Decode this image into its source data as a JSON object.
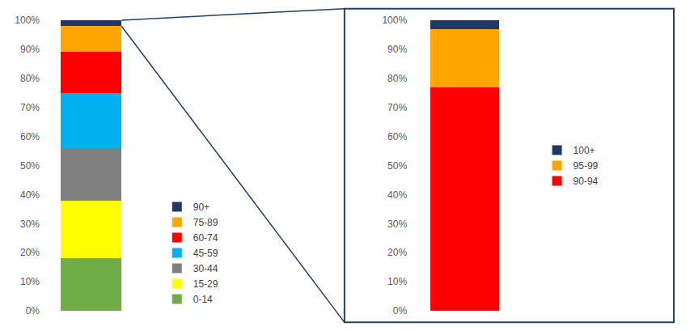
{
  "chart_data": [
    {
      "type": "bar",
      "stacked": true,
      "categories": [
        null
      ],
      "series": [
        {
          "name": "0-14",
          "color": "#70AD47",
          "values": [
            0.18
          ]
        },
        {
          "name": "15-29",
          "color": "#FFFF00",
          "values": [
            0.2
          ]
        },
        {
          "name": "30-44",
          "color": "#808080",
          "values": [
            0.18
          ]
        },
        {
          "name": "45-59",
          "color": "#00B0F0",
          "values": [
            0.19
          ]
        },
        {
          "name": "60-74",
          "color": "#FF0000",
          "values": [
            0.14
          ]
        },
        {
          "name": "75-89",
          "color": "#FFA500",
          "values": [
            0.09
          ]
        },
        {
          "name": "90+",
          "color": "#1F3864",
          "values": [
            0.02
          ]
        }
      ],
      "ylim": [
        0.0,
        1.0
      ],
      "yticks": [
        {
          "value": 0.0,
          "label": "0%"
        },
        {
          "value": 0.1,
          "label": "10%"
        },
        {
          "value": 0.2,
          "label": "20%"
        },
        {
          "value": 0.3,
          "label": "30%"
        },
        {
          "value": 0.4,
          "label": "40%"
        },
        {
          "value": 0.5,
          "label": "50%"
        },
        {
          "value": 0.6,
          "label": "60%"
        },
        {
          "value": 0.7,
          "label": "70%"
        },
        {
          "value": 0.8,
          "label": "80%"
        },
        {
          "value": 0.9,
          "label": "90%"
        },
        {
          "value": 1.0,
          "label": "100%"
        }
      ],
      "grid": false,
      "legend": "lower right",
      "tick_labels": "y"
    },
    {
      "type": "bar",
      "stacked": true,
      "categories": [
        null
      ],
      "series": [
        {
          "name": "90-94",
          "color": "#FF0000",
          "values": [
            0.77
          ]
        },
        {
          "name": "95-99",
          "color": "#FFA500",
          "values": [
            0.2
          ]
        },
        {
          "name": "100+",
          "color": "#1F3864",
          "values": [
            0.03
          ]
        }
      ],
      "ylim": [
        0.0,
        1.0
      ],
      "yticks": [
        {
          "value": 0.0,
          "label": "0%"
        },
        {
          "value": 0.1,
          "label": "10%"
        },
        {
          "value": 0.2,
          "label": "20%"
        },
        {
          "value": 0.3,
          "label": "30%"
        },
        {
          "value": 0.4,
          "label": "40%"
        },
        {
          "value": 0.5,
          "label": "50%"
        },
        {
          "value": 0.6,
          "label": "60%"
        },
        {
          "value": 0.7,
          "label": "70%"
        },
        {
          "value": 0.8,
          "label": "80%"
        },
        {
          "value": 0.9,
          "label": "90%"
        },
        {
          "value": 1.0,
          "label": "100%"
        }
      ],
      "grid": false,
      "legend": "right",
      "tick_labels": "y"
    }
  ]
}
